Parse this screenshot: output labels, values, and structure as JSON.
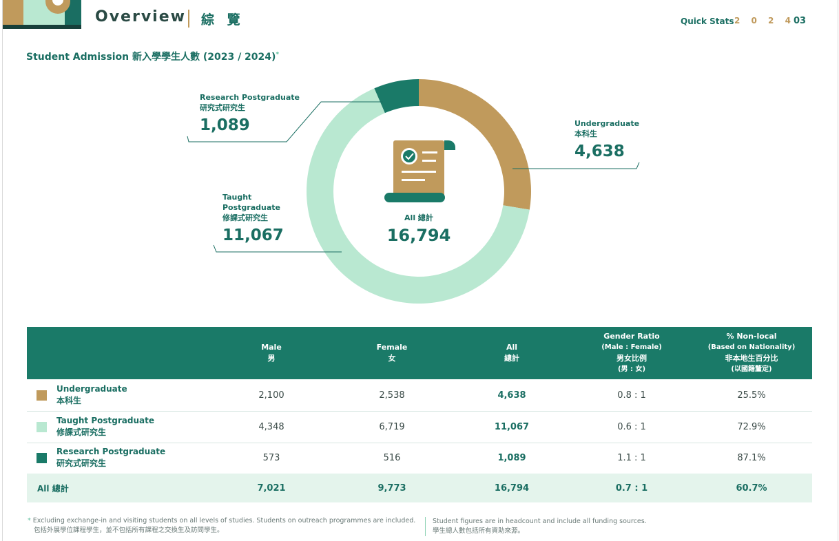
{
  "header": {
    "title": "Overview",
    "title_zh": "綜 覽",
    "quick_stats": "Quick Stats",
    "year": "2 0 2 4",
    "page_number": "03"
  },
  "section": {
    "title": "Student Admission 新入學學生人數 (2023 / 2024)",
    "footnote_mark": "*"
  },
  "chart_data": {
    "type": "pie",
    "categories": [
      "Undergraduate",
      "Taught Postgraduate",
      "Research Postgraduate"
    ],
    "categories_zh": [
      "本科生",
      "修課式研究生",
      "研究式研究生"
    ],
    "values": [
      4638,
      11067,
      1089
    ],
    "value_labels": [
      "4,638",
      "11,067",
      "1,089"
    ],
    "colors": [
      "#c09a5c",
      "#b9e8d1",
      "#1a7a68"
    ],
    "center_label": "All 總計",
    "center_value": "16,794",
    "center_icon": "certificate-scroll-icon"
  },
  "labels": {
    "ug_en": "Undergraduate",
    "ug_zh": "本科生",
    "tpg_en_1": "Taught",
    "tpg_en_2": "Postgraduate",
    "tpg_zh": "修課式研究生",
    "rpg_en": "Research Postgraduate",
    "rpg_zh": "研究式研究生"
  },
  "table": {
    "headers": {
      "male_en": "Male",
      "male_zh": "男",
      "female_en": "Female",
      "female_zh": "女",
      "all_en": "All",
      "all_zh": "總計",
      "ratio_en": "Gender Ratio",
      "ratio_sub": "(Male : Female)",
      "ratio_zh": "男女比例",
      "ratio_zh_sub": "(男 : 女)",
      "nonlocal_en": "% Non-local",
      "nonlocal_sub": "(Based on Nationality)",
      "nonlocal_zh": "非本地生百分比",
      "nonlocal_zh_sub": "(以國籍釐定)"
    },
    "rows": [
      {
        "name_en": "Undergraduate",
        "name_zh": "本科生",
        "male": "2,100",
        "female": "2,538",
        "all": "4,638",
        "ratio": "0.8 : 1",
        "nonlocal": "25.5%",
        "color": "#c09a5c"
      },
      {
        "name_en": "Taught Postgraduate",
        "name_zh": "修課式研究生",
        "male": "4,348",
        "female": "6,719",
        "all": "11,067",
        "ratio": "0.6 : 1",
        "nonlocal": "72.9%",
        "color": "#b9e8d1"
      },
      {
        "name_en": "Research Postgraduate",
        "name_zh": "研究式研究生",
        "male": "573",
        "female": "516",
        "all": "1,089",
        "ratio": "1.1 : 1",
        "nonlocal": "87.1%",
        "color": "#1a7a68"
      }
    ],
    "total": {
      "label": "All 總計",
      "male": "7,021",
      "female": "9,773",
      "all": "16,794",
      "ratio": "0.7 : 1",
      "nonlocal": "60.7%"
    }
  },
  "notes": {
    "star": "*",
    "left_en": "Excluding exchange-in and visiting students on all levels of studies. Students on outreach programmes are included.",
    "left_zh": "包括外展學位課程學生，並不包括所有課程之交換生及訪問學生。",
    "right_en": "Student figures are in headcount and include all funding sources.",
    "right_zh": "學生總人數包括所有資助來源。"
  }
}
